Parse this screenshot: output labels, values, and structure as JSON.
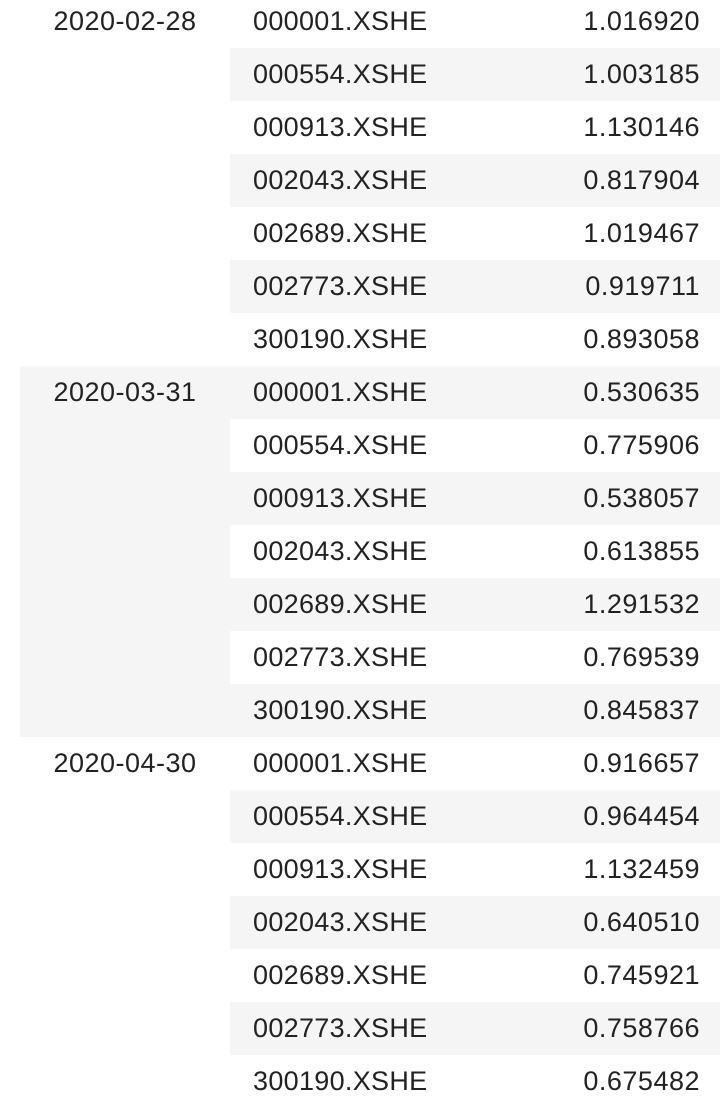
{
  "table": {
    "groups": [
      {
        "date": "2020-02-28",
        "rows": [
          {
            "ticker": "000001.XSHE",
            "value": "1.016920"
          },
          {
            "ticker": "000554.XSHE",
            "value": "1.003185"
          },
          {
            "ticker": "000913.XSHE",
            "value": "1.130146"
          },
          {
            "ticker": "002043.XSHE",
            "value": "0.817904"
          },
          {
            "ticker": "002689.XSHE",
            "value": "1.019467"
          },
          {
            "ticker": "002773.XSHE",
            "value": "0.919711"
          },
          {
            "ticker": "300190.XSHE",
            "value": "0.893058"
          }
        ]
      },
      {
        "date": "2020-03-31",
        "rows": [
          {
            "ticker": "000001.XSHE",
            "value": "0.530635"
          },
          {
            "ticker": "000554.XSHE",
            "value": "0.775906"
          },
          {
            "ticker": "000913.XSHE",
            "value": "0.538057"
          },
          {
            "ticker": "002043.XSHE",
            "value": "0.613855"
          },
          {
            "ticker": "002689.XSHE",
            "value": "1.291532"
          },
          {
            "ticker": "002773.XSHE",
            "value": "0.769539"
          },
          {
            "ticker": "300190.XSHE",
            "value": "0.845837"
          }
        ]
      },
      {
        "date": "2020-04-30",
        "rows": [
          {
            "ticker": "000001.XSHE",
            "value": "0.916657"
          },
          {
            "ticker": "000554.XSHE",
            "value": "0.964454"
          },
          {
            "ticker": "000913.XSHE",
            "value": "1.132459"
          },
          {
            "ticker": "002043.XSHE",
            "value": "0.640510"
          },
          {
            "ticker": "002689.XSHE",
            "value": "0.745921"
          },
          {
            "ticker": "002773.XSHE",
            "value": "0.758766"
          },
          {
            "ticker": "300190.XSHE",
            "value": "0.675482"
          }
        ]
      }
    ]
  }
}
